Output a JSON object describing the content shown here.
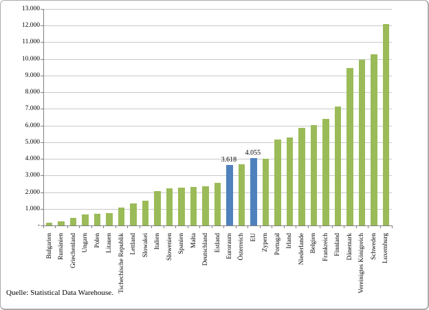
{
  "chart_data": {
    "type": "bar",
    "title": "",
    "xlabel": "",
    "ylabel": "",
    "ylim": [
      0,
      13000
    ],
    "grid": true,
    "legend": false,
    "source_note": "Quelle: Statistical Data Warehouse.",
    "colors": {
      "bar_default": "#9BBB59",
      "bar_highlight": "#4F81BD",
      "gridline": "#C8C8C8",
      "axis": "#7F7F7F",
      "text": "#000000"
    },
    "y_ticks": [
      {
        "label": "13.000",
        "value": 13000
      },
      {
        "label": "12.000",
        "value": 12000
      },
      {
        "label": "11.000",
        "value": 11000
      },
      {
        "label": "10.000",
        "value": 10000
      },
      {
        "label": "9.000",
        "value": 9000
      },
      {
        "label": "8.000",
        "value": 8000
      },
      {
        "label": "7.000",
        "value": 7000
      },
      {
        "label": "6.000",
        "value": 6000
      },
      {
        "label": "5.000",
        "value": 5000
      },
      {
        "label": "4.000",
        "value": 4000
      },
      {
        "label": "3.000",
        "value": 3000
      },
      {
        "label": "2.000",
        "value": 2000
      },
      {
        "label": "1.000",
        "value": 1000
      },
      {
        "label": "-",
        "value": 0
      }
    ],
    "bars": [
      {
        "category": "Bulgarien",
        "value": 180,
        "highlight": false,
        "data_label": ""
      },
      {
        "category": "Rumänien",
        "value": 250,
        "highlight": false,
        "data_label": ""
      },
      {
        "category": "Griechenland",
        "value": 460,
        "highlight": false,
        "data_label": ""
      },
      {
        "category": "Ungarn",
        "value": 660,
        "highlight": false,
        "data_label": ""
      },
      {
        "category": "Polen",
        "value": 710,
        "highlight": false,
        "data_label": ""
      },
      {
        "category": "Litauen",
        "value": 760,
        "highlight": false,
        "data_label": ""
      },
      {
        "category": "Tschechische Republik",
        "value": 1070,
        "highlight": false,
        "data_label": ""
      },
      {
        "category": "Lettland",
        "value": 1310,
        "highlight": false,
        "data_label": ""
      },
      {
        "category": "Slowakei",
        "value": 1490,
        "highlight": false,
        "data_label": ""
      },
      {
        "category": "Italien",
        "value": 2050,
        "highlight": false,
        "data_label": ""
      },
      {
        "category": "Slowenien",
        "value": 2230,
        "highlight": false,
        "data_label": ""
      },
      {
        "category": "Spanien",
        "value": 2270,
        "highlight": false,
        "data_label": ""
      },
      {
        "category": "Malta",
        "value": 2310,
        "highlight": false,
        "data_label": ""
      },
      {
        "category": "Deutschland",
        "value": 2370,
        "highlight": false,
        "data_label": ""
      },
      {
        "category": "Estland",
        "value": 2560,
        "highlight": false,
        "data_label": ""
      },
      {
        "category": "Euroraum",
        "value": 3618,
        "highlight": true,
        "data_label": "3.618"
      },
      {
        "category": "Österreich",
        "value": 3660,
        "highlight": false,
        "data_label": ""
      },
      {
        "category": "EU",
        "value": 4055,
        "highlight": true,
        "data_label": "4.055"
      },
      {
        "category": "Zypern",
        "value": 4020,
        "highlight": false,
        "data_label": ""
      },
      {
        "category": "Portugal",
        "value": 5140,
        "highlight": false,
        "data_label": ""
      },
      {
        "category": "Irland",
        "value": 5300,
        "highlight": false,
        "data_label": ""
      },
      {
        "category": "Niederlande",
        "value": 5880,
        "highlight": false,
        "data_label": ""
      },
      {
        "category": "Belgien",
        "value": 6010,
        "highlight": false,
        "data_label": ""
      },
      {
        "category": "Frankreich",
        "value": 6390,
        "highlight": false,
        "data_label": ""
      },
      {
        "category": "Finnland",
        "value": 7160,
        "highlight": false,
        "data_label": ""
      },
      {
        "category": "Dänemark",
        "value": 9470,
        "highlight": false,
        "data_label": ""
      },
      {
        "category": "Vereinigtes Königreich",
        "value": 9930,
        "highlight": false,
        "data_label": ""
      },
      {
        "category": "Schweden",
        "value": 10260,
        "highlight": false,
        "data_label": ""
      },
      {
        "category": "Luxemburg",
        "value": 12100,
        "highlight": false,
        "data_label": ""
      }
    ]
  }
}
